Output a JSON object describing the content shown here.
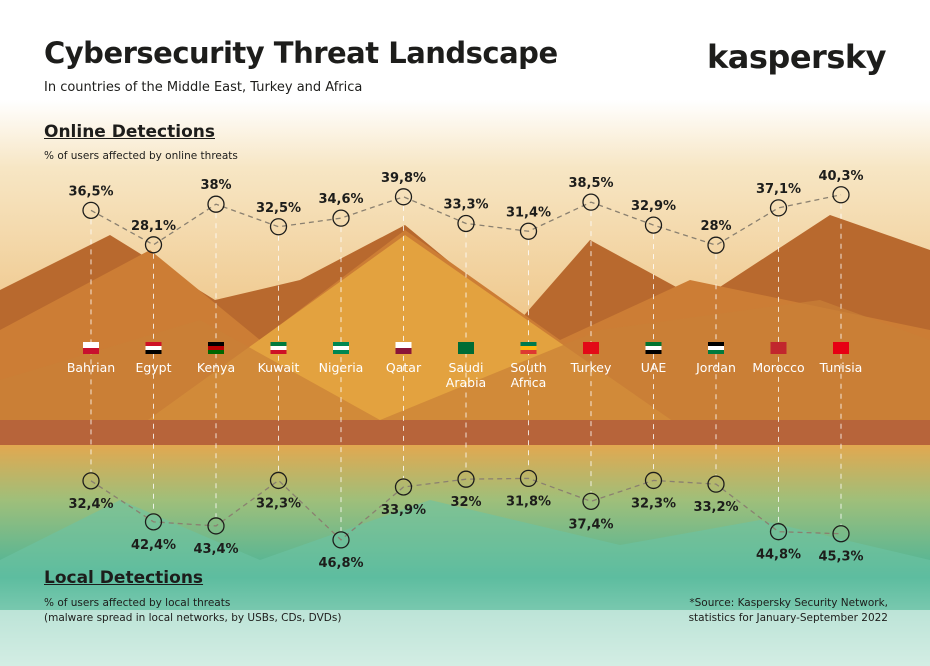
{
  "header": {
    "title": "Cybersecurity Threat Landscape",
    "subtitle": "In countries of the Middle East, Turkey and Africa",
    "logo": "kaspersky"
  },
  "online": {
    "heading": "Online Detections",
    "subheading": "% of users affected by online threats"
  },
  "local": {
    "heading": "Local Detections",
    "subheading_line1": "% of users affected by local threats",
    "subheading_line2": "(malware spread in local networks, by USBs, CDs, DVDs)"
  },
  "source": {
    "line1": "*Source: Kaspersky Security Network,",
    "line2": "statistics for January-September 2022"
  },
  "colors": {
    "line": "#8a8070",
    "text": "#1d1d1b",
    "sand": "#d99a3e",
    "green": "#3fb59a"
  },
  "chart_data": {
    "type": "line",
    "categories": [
      "Bahrian",
      "Egypt",
      "Kenya",
      "Kuwait",
      "Nigeria",
      "Qatar",
      "Saudi Arabia",
      "South Africa",
      "Turkey",
      "UAE",
      "Jordan",
      "Morocco",
      "Tunisia"
    ],
    "series": [
      {
        "name": "Online Detections",
        "unit": "%",
        "values": [
          36.5,
          28.1,
          38,
          32.5,
          34.6,
          39.8,
          33.3,
          31.4,
          38.5,
          32.9,
          28,
          37.1,
          40.3
        ],
        "labels": [
          "36,5%",
          "28,1%",
          "38%",
          "32,5%",
          "34,6%",
          "39,8%",
          "33,3%",
          "31,4%",
          "38,5%",
          "32,9%",
          "28%",
          "37,1%",
          "40,3%"
        ]
      },
      {
        "name": "Local Detections",
        "unit": "%",
        "values": [
          32.4,
          42.4,
          43.4,
          32.3,
          46.8,
          33.9,
          32,
          31.8,
          37.4,
          32.3,
          33.2,
          44.8,
          45.3
        ],
        "labels": [
          "32,4%",
          "42,4%",
          "43,4%",
          "32,3%",
          "46,8%",
          "33,9%",
          "32%",
          "31,8%",
          "37,4%",
          "32,3%",
          "33,2%",
          "44,8%",
          "45,3%"
        ]
      }
    ]
  }
}
